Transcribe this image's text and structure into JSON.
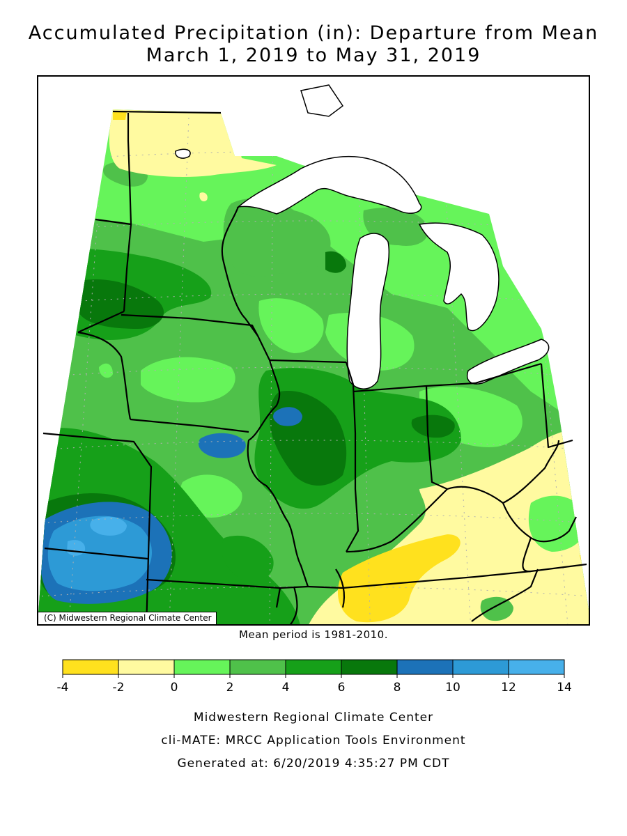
{
  "title": {
    "line1": "Accumulated Precipitation (in): Departure from Mean",
    "line2": "March 1, 2019 to May 31, 2019"
  },
  "map": {
    "copyright": "(C) Midwestern Regional Climate Center",
    "mean_period": "Mean period is 1981-2010.",
    "lake_color": "#ffffff",
    "boundary_color": "#000000",
    "grid": true
  },
  "legend": {
    "unit": "in",
    "bins": [
      {
        "min": -4,
        "max": -2,
        "color": "#ffe11e"
      },
      {
        "min": -2,
        "max": 0,
        "color": "#fffaa0"
      },
      {
        "min": 0,
        "max": 2,
        "color": "#66f45a"
      },
      {
        "min": 2,
        "max": 4,
        "color": "#4fc14a"
      },
      {
        "min": 4,
        "max": 6,
        "color": "#16a019"
      },
      {
        "min": 6,
        "max": 8,
        "color": "#08780c"
      },
      {
        "min": 8,
        "max": 10,
        "color": "#1c72b8"
      },
      {
        "min": 10,
        "max": 12,
        "color": "#2d9ad6"
      },
      {
        "min": 12,
        "max": 14,
        "color": "#47b0ea"
      }
    ],
    "tick_labels": [
      "-4",
      "-2",
      "0",
      "2",
      "4",
      "6",
      "8",
      "10",
      "12",
      "14"
    ]
  },
  "footer": {
    "line1": "Midwestern Regional Climate Center",
    "line2": "cli-MATE: MRCC Application Tools Environment",
    "line3": "Generated at: 6/20/2019 4:35:27 PM CDT"
  }
}
